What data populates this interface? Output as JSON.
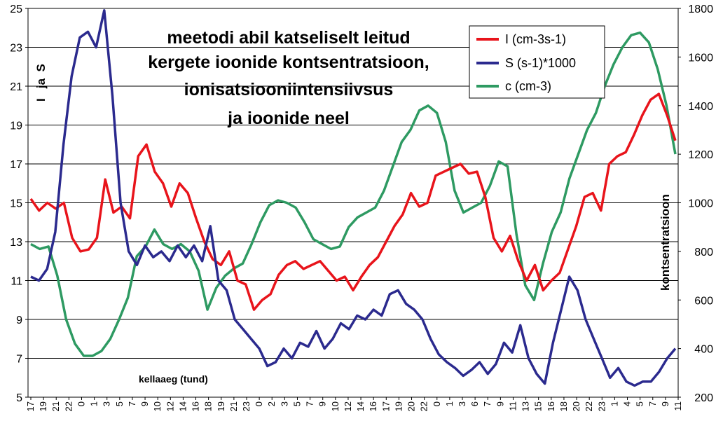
{
  "chart_data": {
    "type": "line",
    "title_lines": [
      "meetodi abil katseliselt leitud",
      "kergete ioonide kontsentratsioon,",
      "ionisatsiooniintensiivsus",
      "ja ioonide neel"
    ],
    "xlabel": "kellaaeg (tund)",
    "ylabel_left": "I   ja  S",
    "ylabel_right": "kontsentratsioon",
    "ylim_left": [
      5,
      25
    ],
    "yticks_left": [
      5,
      7,
      9,
      11,
      13,
      15,
      17,
      19,
      21,
      23,
      25
    ],
    "ylim_right": [
      200,
      1800
    ],
    "yticks_right": [
      200,
      400,
      600,
      800,
      1000,
      1200,
      1400,
      1600,
      1800
    ],
    "x_tick_labels": [
      "17",
      "19",
      "21",
      "22",
      "0",
      "1",
      "3",
      "5",
      "7",
      "9",
      "10",
      "12",
      "14",
      "16",
      "18",
      "19",
      "21",
      "23",
      "0",
      "2",
      "3",
      "5",
      "7",
      "9",
      "10",
      "12",
      "14",
      "16",
      "17",
      "19",
      "20",
      "22",
      "0",
      "1",
      "3",
      "6",
      "7",
      "9",
      "11",
      "13",
      "15",
      "16",
      "18",
      "20",
      "22",
      "23",
      "1",
      "4",
      "5",
      "7",
      "9",
      "11"
    ],
    "grid": "horizontal",
    "legend_position": "top-right",
    "series": [
      {
        "name": "I (cm-3s-1)",
        "axis": "left",
        "color": "#e8141b",
        "values": [
          15.2,
          14.6,
          15.0,
          14.7,
          15.0,
          13.2,
          12.5,
          12.6,
          13.2,
          16.2,
          14.5,
          14.8,
          14.2,
          17.4,
          18.0,
          16.6,
          16.0,
          14.8,
          16.0,
          15.5,
          14.2,
          13.0,
          12.1,
          11.8,
          12.5,
          11.0,
          10.8,
          9.5,
          10.0,
          10.3,
          11.3,
          11.8,
          12.0,
          11.6,
          11.8,
          12.0,
          11.5,
          11.0,
          11.2,
          10.5,
          11.2,
          11.8,
          12.2,
          13.0,
          13.8,
          14.4,
          15.5,
          14.8,
          15.0,
          16.4,
          16.6,
          16.8,
          17.0,
          16.5,
          16.6,
          15.3,
          13.2,
          12.5,
          13.3,
          12.0,
          11.0,
          11.8,
          10.5,
          11.0,
          11.4,
          12.6,
          13.8,
          15.3,
          15.5,
          14.6,
          17.0,
          17.4,
          17.6,
          18.5,
          19.5,
          20.3,
          20.6,
          19.5,
          18.2
        ]
      },
      {
        "name": "S (s-1)*1000",
        "axis": "left",
        "color": "#2b2a8e",
        "values": [
          11.2,
          11.0,
          11.6,
          13.5,
          18.0,
          21.5,
          23.5,
          23.8,
          23.0,
          24.9,
          20.5,
          15.0,
          12.5,
          11.8,
          12.8,
          12.2,
          12.5,
          12.0,
          12.8,
          12.2,
          12.8,
          12.0,
          13.8,
          11.0,
          10.5,
          9.0,
          8.5,
          8.0,
          7.5,
          6.6,
          6.8,
          7.5,
          7.0,
          7.8,
          7.6,
          8.4,
          7.5,
          8.0,
          8.8,
          8.5,
          9.2,
          9.0,
          9.5,
          9.2,
          10.3,
          10.5,
          9.8,
          9.5,
          9.0,
          8.0,
          7.2,
          6.8,
          6.5,
          6.1,
          6.4,
          6.8,
          6.2,
          6.7,
          7.8,
          7.3,
          8.7,
          7.0,
          6.2,
          5.7,
          7.8,
          9.5,
          11.2,
          10.5,
          9.0,
          8.0,
          7.0,
          6.0,
          6.5,
          5.8,
          5.6,
          5.8,
          5.8,
          6.3,
          7.0,
          7.5
        ]
      },
      {
        "name": "c (cm-3)",
        "axis": "right",
        "color": "#2e9a62",
        "values": [
          830,
          810,
          820,
          700,
          520,
          420,
          370,
          370,
          390,
          440,
          520,
          610,
          780,
          820,
          890,
          830,
          810,
          830,
          800,
          720,
          560,
          650,
          700,
          730,
          750,
          830,
          920,
          990,
          1010,
          1000,
          980,
          920,
          850,
          830,
          810,
          820,
          900,
          940,
          960,
          980,
          1050,
          1150,
          1250,
          1300,
          1380,
          1400,
          1370,
          1250,
          1050,
          960,
          980,
          1000,
          1070,
          1170,
          1150,
          870,
          660,
          600,
          750,
          880,
          960,
          1100,
          1200,
          1300,
          1370,
          1480,
          1570,
          1640,
          1690,
          1700,
          1660,
          1550,
          1400,
          1200
        ]
      }
    ]
  }
}
